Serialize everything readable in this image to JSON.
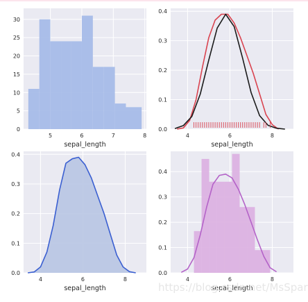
{
  "watermark": "https://blog.csdn.net/MsSpark",
  "chart_data": [
    {
      "type": "bar",
      "panel": "top-left",
      "xlabel": "sepal_length",
      "bins": [
        {
          "x0": 4.3,
          "x1": 4.65,
          "count": 11
        },
        {
          "x0": 4.65,
          "x1": 5.0,
          "count": 30
        },
        {
          "x0": 5.0,
          "x1": 5.35,
          "count": 24
        },
        {
          "x0": 5.35,
          "x1": 5.65,
          "count": 24
        },
        {
          "x0": 5.65,
          "x1": 6.0,
          "count": 24
        },
        {
          "x0": 6.0,
          "x1": 6.35,
          "count": 31
        },
        {
          "x0": 6.35,
          "x1": 6.7,
          "count": 17
        },
        {
          "x0": 6.7,
          "x1": 7.05,
          "count": 17
        },
        {
          "x0": 7.05,
          "x1": 7.4,
          "count": 7
        },
        {
          "x0": 7.4,
          "x1": 7.9,
          "count": 6
        }
      ],
      "xlim": [
        4.15,
        8.05
      ],
      "ylim": [
        0,
        33
      ],
      "xticks": [
        5,
        6,
        7,
        8
      ],
      "yticks": [
        0,
        5,
        10,
        15,
        20,
        25,
        30
      ],
      "color": "#4c72b0",
      "fill_color": "#a6bce8",
      "grid": true
    },
    {
      "type": "line",
      "panel": "top-right",
      "xlabel": "sepal_length",
      "series": [
        {
          "color": "#d9434f",
          "x": [
            3.5,
            3.8,
            4.1,
            4.4,
            4.7,
            5.0,
            5.3,
            5.6,
            5.9,
            6.2,
            6.5,
            6.8,
            7.1,
            7.4,
            7.7,
            8.0,
            8.3
          ],
          "y": [
            0.0,
            0.004,
            0.03,
            0.1,
            0.21,
            0.31,
            0.37,
            0.39,
            0.39,
            0.36,
            0.31,
            0.25,
            0.19,
            0.12,
            0.05,
            0.015,
            0.0
          ]
        },
        {
          "color": "#1a1a1a",
          "x": [
            3.4,
            3.8,
            4.2,
            4.6,
            5.0,
            5.4,
            5.8,
            6.2,
            6.6,
            7.0,
            7.4,
            7.8,
            8.2,
            8.6
          ],
          "y": [
            0.002,
            0.012,
            0.043,
            0.119,
            0.234,
            0.343,
            0.39,
            0.348,
            0.24,
            0.124,
            0.046,
            0.013,
            0.003,
            0.0
          ]
        }
      ],
      "rug": {
        "color": "#d9434f",
        "values": [
          4.3,
          4.4,
          4.5,
          4.6,
          4.7,
          4.8,
          4.9,
          5.0,
          5.1,
          5.2,
          5.3,
          5.4,
          5.5,
          5.6,
          5.7,
          5.8,
          5.9,
          6.0,
          6.1,
          6.2,
          6.3,
          6.4,
          6.5,
          6.6,
          6.7,
          6.8,
          6.9,
          7.0,
          7.1,
          7.2,
          7.3,
          7.4,
          7.6,
          7.7,
          7.9
        ]
      },
      "xlim": [
        3.2,
        9.0
      ],
      "ylim": [
        0,
        0.41
      ],
      "xticks": [
        4,
        6,
        8
      ],
      "yticks": [
        0.0,
        0.1,
        0.2,
        0.3,
        0.4
      ],
      "grid": true
    },
    {
      "type": "area",
      "panel": "bottom-left",
      "xlabel": "sepal_length",
      "series": [
        {
          "color": "#3a5fd1",
          "fill_color": "#b8c5e3",
          "x": [
            3.4,
            3.7,
            4.0,
            4.3,
            4.6,
            4.9,
            5.2,
            5.5,
            5.8,
            6.1,
            6.4,
            6.7,
            7.0,
            7.3,
            7.6,
            7.9,
            8.2,
            8.5
          ],
          "y": [
            0.0,
            0.003,
            0.02,
            0.07,
            0.16,
            0.28,
            0.37,
            0.385,
            0.39,
            0.365,
            0.32,
            0.26,
            0.2,
            0.13,
            0.06,
            0.02,
            0.004,
            0.0
          ]
        }
      ],
      "xlim": [
        3.2,
        9.0
      ],
      "ylim": [
        0,
        0.41
      ],
      "xticks": [
        4,
        6,
        8
      ],
      "yticks": [
        0.0,
        0.1,
        0.2,
        0.3,
        0.4
      ],
      "grid": true
    },
    {
      "type": "bar",
      "panel": "bottom-right",
      "xlabel": "sepal_length",
      "bins": [
        {
          "x0": 4.3,
          "x1": 4.66,
          "density": 0.165
        },
        {
          "x0": 4.66,
          "x1": 5.02,
          "density": 0.45
        },
        {
          "x0": 5.02,
          "x1": 5.38,
          "density": 0.36
        },
        {
          "x0": 5.38,
          "x1": 5.74,
          "density": 0.36
        },
        {
          "x0": 5.74,
          "x1": 6.1,
          "density": 0.36
        },
        {
          "x0": 6.1,
          "x1": 6.46,
          "density": 0.47
        },
        {
          "x0": 6.46,
          "x1": 6.82,
          "density": 0.26
        },
        {
          "x0": 6.82,
          "x1": 7.18,
          "density": 0.26
        },
        {
          "x0": 7.18,
          "x1": 7.54,
          "density": 0.09
        },
        {
          "x0": 7.54,
          "x1": 7.9,
          "density": 0.09
        }
      ],
      "series": [
        {
          "color": "#b463c8",
          "x": [
            3.7,
            4.0,
            4.3,
            4.6,
            4.9,
            5.2,
            5.5,
            5.8,
            6.1,
            6.4,
            6.7,
            7.0,
            7.3,
            7.6,
            7.9,
            8.2
          ],
          "y": [
            0.002,
            0.015,
            0.06,
            0.15,
            0.26,
            0.35,
            0.385,
            0.39,
            0.375,
            0.33,
            0.27,
            0.2,
            0.13,
            0.065,
            0.02,
            0.004
          ]
        }
      ],
      "fill_color": "#dcb2e1",
      "xlim": [
        3.2,
        9.0
      ],
      "ylim": [
        0,
        0.48
      ],
      "xticks": [
        4,
        6,
        8
      ],
      "yticks": [
        0.0,
        0.1,
        0.2,
        0.3,
        0.4
      ],
      "grid": true
    }
  ]
}
